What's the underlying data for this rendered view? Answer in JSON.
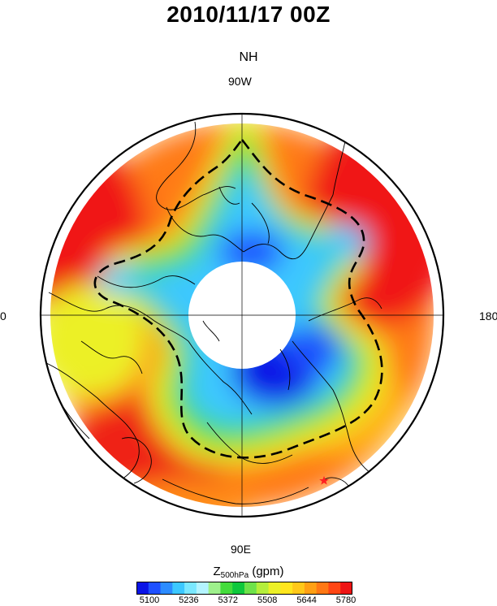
{
  "title": "2010/11/17 00Z",
  "subtitle": "NH",
  "longitude_labels": {
    "top": "90W",
    "bottom": "90E",
    "left": "0",
    "right": "180"
  },
  "colorbar": {
    "label_main": "Z",
    "label_sub": "500hPa",
    "label_unit": "(gpm)",
    "ticks": [
      "5100",
      "5236",
      "5372",
      "5508",
      "5644",
      "5780"
    ],
    "colors": [
      "#0a14e6",
      "#1e50ff",
      "#2c8cff",
      "#3cc8ff",
      "#7ae8ff",
      "#b4f4ff",
      "#9ef08c",
      "#44dc3c",
      "#0fc83c",
      "#6ee24a",
      "#b4ee3c",
      "#ecf028",
      "#ffe61e",
      "#ffc819",
      "#ffa014",
      "#ff7814",
      "#ff4614",
      "#ee1414"
    ]
  },
  "marker": {
    "type": "star",
    "color": "#ff2020"
  }
}
